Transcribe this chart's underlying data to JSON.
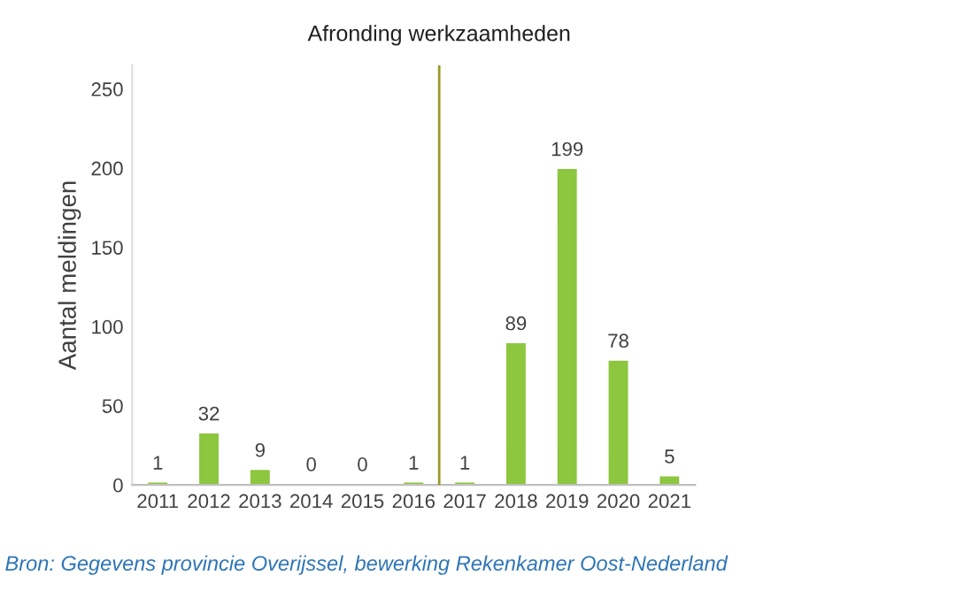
{
  "chart_data": {
    "type": "bar",
    "x": [
      2011,
      2012,
      2013,
      2014,
      2015,
      2016,
      2017,
      2018,
      2019,
      2020,
      2021
    ],
    "values": [
      1,
      32,
      9,
      0,
      0,
      1,
      1,
      89,
      199,
      78,
      5
    ],
    "color": "#8dc63f",
    "data_labels": true,
    "xlim": [
      2010.5,
      2021.5
    ],
    "xticks": [
      2011,
      2012,
      2013,
      2014,
      2015,
      2016,
      2017,
      2018,
      2019,
      2020,
      2021
    ],
    "ylim": [
      0,
      265
    ],
    "yticks": [
      0,
      50,
      100,
      150,
      200,
      250
    ],
    "ylabel": "Aantal meldingen",
    "grid": false,
    "ref_lines": [
      {
        "axis": "x",
        "value": 2016.5,
        "label": "Afronding werkzaamheden",
        "color": "#9a9a28"
      }
    ],
    "annotations": [
      "Bron: Gegevens provincie Overijssel, bewerking Rekenkamer Oost-Nederland"
    ]
  }
}
